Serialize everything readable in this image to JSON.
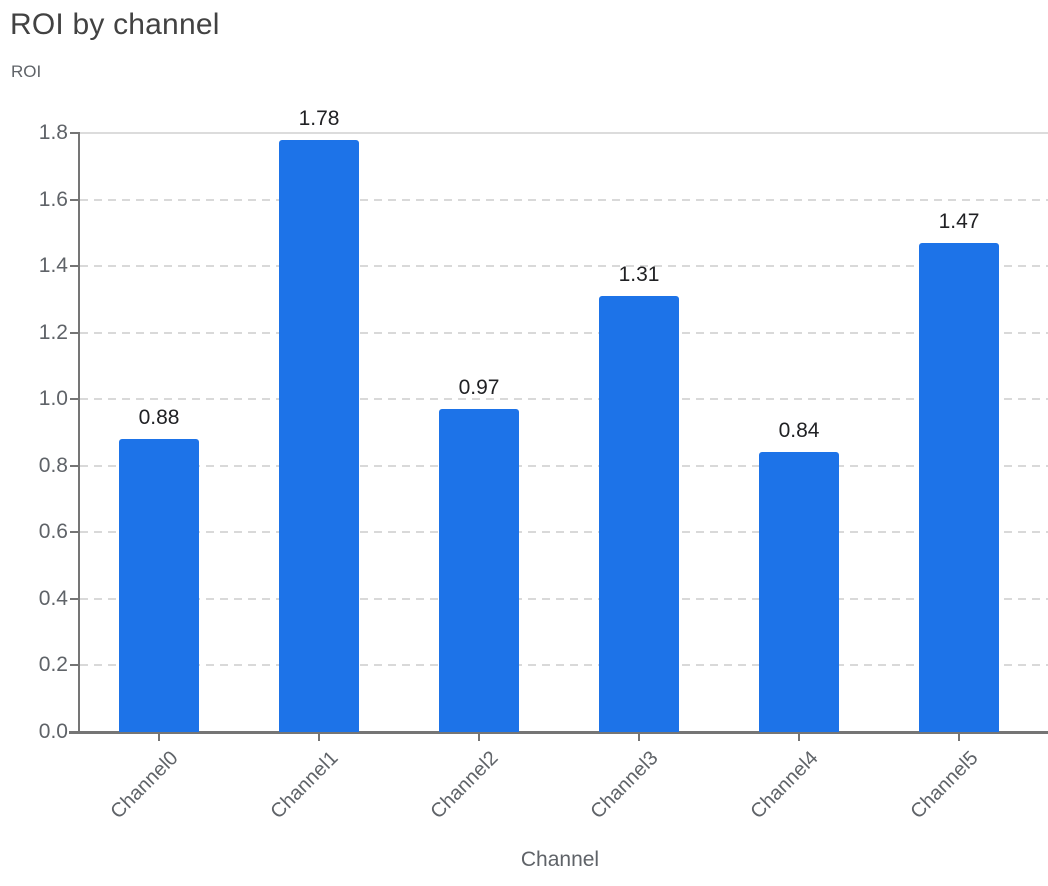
{
  "header": {
    "title": "ROI by channel",
    "y_axis_title": "ROI",
    "x_axis_title": "Channel"
  },
  "chart_data": {
    "type": "bar",
    "title": "ROI by channel",
    "xlabel": "Channel",
    "ylabel": "ROI",
    "categories": [
      "Channel0",
      "Channel1",
      "Channel2",
      "Channel3",
      "Channel4",
      "Channel5"
    ],
    "values": [
      0.88,
      1.78,
      0.97,
      1.31,
      0.84,
      1.47
    ],
    "data_labels": [
      "0.88",
      "1.78",
      "0.97",
      "1.31",
      "0.84",
      "1.47"
    ],
    "ylim": [
      0,
      1.8
    ],
    "ytick_labels": [
      "0.0",
      "0.2",
      "0.4",
      "0.6",
      "0.8",
      "1.0",
      "1.2",
      "1.4",
      "1.6",
      "1.8"
    ],
    "grid": "horizontal-dashed",
    "legend": "none",
    "x_label_rotation_deg": -45
  },
  "colors": {
    "background": "#ffffff",
    "bar": "#1d73e8",
    "title_text": "#424242",
    "axis_text": "#5f6368",
    "value_text": "#202124",
    "grid_dashed": "#d9d9d9",
    "grid_top_solid": "#dcdcdc",
    "axis_line": "#757575"
  }
}
